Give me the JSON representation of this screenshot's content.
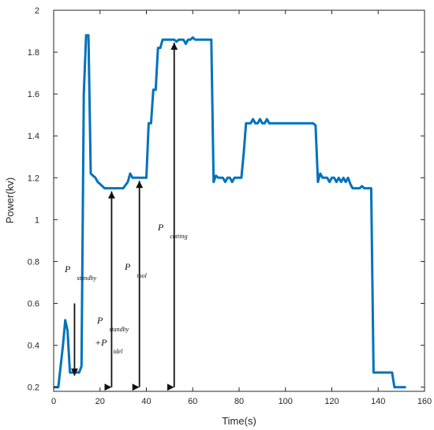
{
  "chart_data": {
    "type": "line",
    "xlabel": "Time(s)",
    "ylabel": "Power(kv)",
    "xlim": [
      0,
      160
    ],
    "ylim": [
      0.18,
      2.0
    ],
    "xticks": [
      0,
      20,
      40,
      60,
      80,
      100,
      120,
      140,
      160
    ],
    "yticks": [
      0.2,
      0.4,
      0.6,
      0.8,
      1,
      1.2,
      1.4,
      1.6,
      1.8,
      2
    ],
    "ytick_labels": [
      "0.2",
      "0.4",
      "0.6",
      "0.8",
      "1",
      "1.2",
      "1.4",
      "1.6",
      "1.8",
      "2"
    ],
    "grid": false,
    "line_color": "#0072BD",
    "series": [
      {
        "x": [
          0,
          2,
          4,
          5,
          6,
          7,
          9,
          11,
          12,
          13,
          14,
          15,
          16,
          17,
          18,
          19,
          20,
          22,
          24,
          25,
          27,
          30,
          32,
          33,
          34,
          35,
          36,
          38,
          40,
          41,
          42,
          43,
          44,
          45,
          46,
          47,
          48,
          49,
          50,
          51,
          52,
          53,
          54,
          55,
          56,
          57,
          58,
          59,
          60,
          61,
          62,
          63,
          64,
          65,
          66,
          67,
          68,
          69,
          70,
          71,
          72,
          73,
          74,
          75,
          76,
          77,
          78,
          79,
          80,
          81,
          82,
          83,
          84,
          85,
          86,
          87,
          88,
          89,
          90,
          91,
          92,
          93,
          94,
          95,
          96,
          97,
          98,
          100,
          105,
          110,
          112,
          113,
          114,
          115,
          116,
          117,
          118,
          119,
          120,
          121,
          122,
          123,
          124,
          125,
          126,
          127,
          128,
          129,
          130,
          131,
          132,
          133,
          134,
          135,
          136,
          137,
          138,
          139,
          140,
          141,
          142,
          144,
          146,
          147,
          148,
          150,
          152
        ],
        "y": [
          0.2,
          0.2,
          0.4,
          0.52,
          0.47,
          0.27,
          0.27,
          0.27,
          0.3,
          1.6,
          1.88,
          1.88,
          1.22,
          1.21,
          1.2,
          1.18,
          1.17,
          1.15,
          1.15,
          1.15,
          1.15,
          1.15,
          1.18,
          1.22,
          1.2,
          1.2,
          1.2,
          1.2,
          1.2,
          1.46,
          1.46,
          1.62,
          1.62,
          1.82,
          1.82,
          1.86,
          1.86,
          1.86,
          1.86,
          1.86,
          1.86,
          1.85,
          1.86,
          1.86,
          1.86,
          1.84,
          1.86,
          1.86,
          1.87,
          1.86,
          1.86,
          1.86,
          1.86,
          1.86,
          1.86,
          1.86,
          1.86,
          1.18,
          1.21,
          1.2,
          1.2,
          1.2,
          1.18,
          1.2,
          1.2,
          1.18,
          1.2,
          1.2,
          1.2,
          1.2,
          1.32,
          1.46,
          1.46,
          1.46,
          1.48,
          1.46,
          1.46,
          1.48,
          1.46,
          1.46,
          1.48,
          1.46,
          1.46,
          1.46,
          1.46,
          1.46,
          1.46,
          1.46,
          1.46,
          1.46,
          1.46,
          1.45,
          1.18,
          1.22,
          1.2,
          1.2,
          1.2,
          1.18,
          1.2,
          1.2,
          1.18,
          1.2,
          1.18,
          1.2,
          1.18,
          1.2,
          1.17,
          1.15,
          1.15,
          1.15,
          1.15,
          1.16,
          1.15,
          1.15,
          1.15,
          1.15,
          0.27,
          0.27,
          0.27,
          0.27,
          0.27,
          0.27,
          0.27,
          0.2,
          0.2,
          0.2,
          0.2
        ]
      }
    ],
    "annotations": [
      {
        "main": "P",
        "sub": "standby",
        "target_x": 9,
        "target_y": 0.27,
        "from_y": 0.6
      },
      {
        "main": "P",
        "sub": "standby",
        "line2_main": "+P",
        "line2_sub": "idel",
        "target_x": 25,
        "target_y": 1.15,
        "from_y": 0.2
      },
      {
        "main": "P",
        "sub": "tool",
        "target_x": 37,
        "target_y": 1.2,
        "from_y": 0.2
      },
      {
        "main": "P",
        "sub": "cutting",
        "target_x": 52,
        "target_y": 1.86,
        "from_y": 0.2
      }
    ]
  }
}
